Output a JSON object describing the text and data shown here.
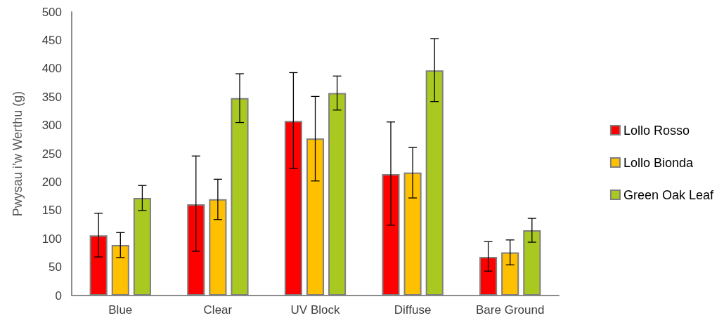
{
  "chart_data": {
    "type": "bar",
    "ylabel": "Pwysau i’w Werthu (g)",
    "categories": [
      "Blue",
      "Clear",
      "UV Block",
      "Diffuse",
      "Bare Ground"
    ],
    "series": [
      {
        "name": "Lollo Rosso",
        "color": "#ff0000",
        "values": [
          106,
          161,
          308,
          214,
          68
        ],
        "errors": [
          [
            68,
            145
          ],
          [
            78,
            246
          ],
          [
            224,
            393
          ],
          [
            124,
            306
          ],
          [
            43,
            95
          ]
        ]
      },
      {
        "name": "Lollo Bionda",
        "color": "#ffc000",
        "values": [
          89,
          170,
          277,
          217,
          76
        ],
        "errors": [
          [
            67,
            111
          ],
          [
            134,
            205
          ],
          [
            202,
            351
          ],
          [
            172,
            261
          ],
          [
            54,
            98
          ]
        ]
      },
      {
        "name": "Green Oak Leaf",
        "color": "#a9c920",
        "values": [
          172,
          348,
          357,
          397,
          115
        ],
        "errors": [
          [
            150,
            194
          ],
          [
            305,
            391
          ],
          [
            327,
            387
          ],
          [
            342,
            453
          ],
          [
            94,
            136
          ]
        ]
      }
    ],
    "ylim": [
      0,
      500
    ],
    "yticks": [
      0,
      50,
      100,
      150,
      200,
      250,
      300,
      350,
      400,
      450,
      500
    ],
    "grid": false,
    "legend": "right"
  }
}
